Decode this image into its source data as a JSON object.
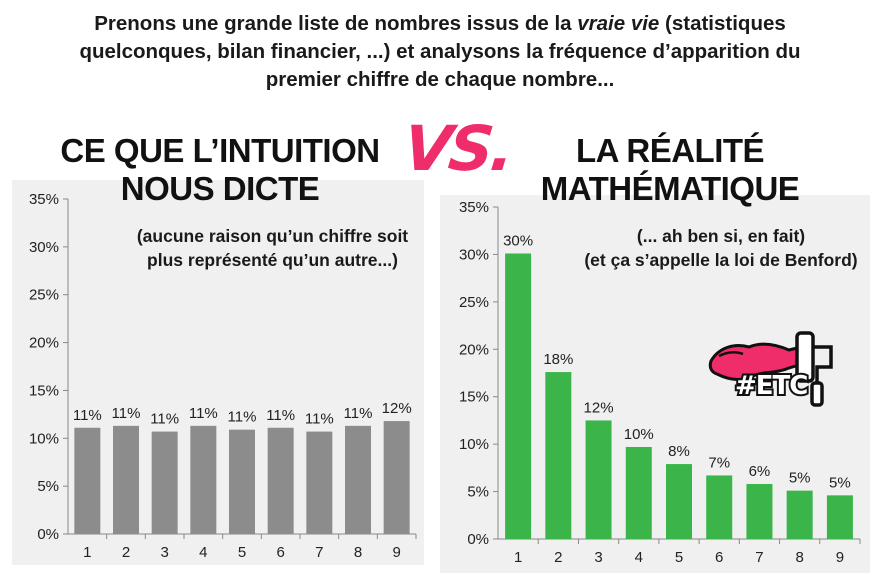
{
  "intro": {
    "line1_before": "Prenons une grande liste de nombres issus de la ",
    "line1_emphasis": "vraie vie",
    "line1_after": " (statistiques",
    "line2": "quelconques, bilan financier, ...) et analysons la fréquence d’apparition du",
    "line3": "premier chiffre de chaque nombre..."
  },
  "left_heading": {
    "line1": "CE QUE L’INTUITION",
    "line2": "NOUS DICTE"
  },
  "vs_label": "VS.",
  "right_heading": {
    "line1": "LA RÉALITÉ",
    "line2": "MATHÉMATIQUE"
  },
  "left_annotation": {
    "line1": "(aucune raison qu’un chiffre soit",
    "line2": "plus représenté qu’un autre...)"
  },
  "right_annotation": {
    "line1": "(... ah ben si, en fait)",
    "line2": "(et ça s’appelle la loi de Benford)"
  },
  "logo": {
    "text": "#ETC",
    "icon": "paint-roller-splash-icon",
    "color": "#ee2d6a"
  },
  "colors": {
    "left_bars": "#8c8c8c",
    "right_bars": "#3bb54a",
    "accent": "#ee2d6a",
    "plot_background": "#f0f0f0"
  },
  "chart_data": [
    {
      "type": "bar",
      "title": "",
      "xlabel": "",
      "ylabel": "",
      "categories": [
        "1",
        "2",
        "3",
        "4",
        "5",
        "6",
        "7",
        "8",
        "9"
      ],
      "values": [
        11.1,
        11.3,
        10.7,
        11.3,
        10.9,
        11.1,
        10.7,
        11.3,
        11.8
      ],
      "data_labels": [
        "11%",
        "11%",
        "11%",
        "11%",
        "11%",
        "11%",
        "11%",
        "11%",
        "12%"
      ],
      "ylim": [
        0,
        35
      ],
      "yticks": [
        0,
        5,
        10,
        15,
        20,
        25,
        30,
        35
      ],
      "ytick_labels": [
        "0%",
        "5%",
        "10%",
        "15%",
        "20%",
        "25%",
        "30%",
        "35%"
      ],
      "grid": false,
      "legend": "none",
      "bar_color": "#8c8c8c"
    },
    {
      "type": "bar",
      "title": "",
      "xlabel": "",
      "ylabel": "",
      "categories": [
        "1",
        "2",
        "3",
        "4",
        "5",
        "6",
        "7",
        "8",
        "9"
      ],
      "values": [
        30.1,
        17.6,
        12.5,
        9.7,
        7.9,
        6.7,
        5.8,
        5.1,
        4.6
      ],
      "data_labels": [
        "30%",
        "18%",
        "12%",
        "10%",
        "8%",
        "7%",
        "6%",
        "5%",
        "5%"
      ],
      "ylim": [
        0,
        35
      ],
      "yticks": [
        0,
        5,
        10,
        15,
        20,
        25,
        30,
        35
      ],
      "ytick_labels": [
        "0%",
        "5%",
        "10%",
        "15%",
        "20%",
        "25%",
        "30%",
        "35%"
      ],
      "grid": false,
      "legend": "none",
      "bar_color": "#3bb54a"
    }
  ]
}
